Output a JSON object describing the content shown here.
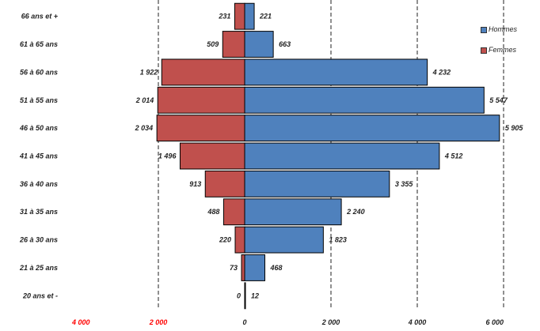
{
  "chart_data": {
    "type": "bar",
    "orientation": "horizontal",
    "layout": "population-pyramid",
    "categories": [
      "66 ans et +",
      "61 à 65 ans",
      "56 à 60 ans",
      "51 à 55 ans",
      "46 à 50 ans",
      "41 à 45 ans",
      "36 à 40 ans",
      "31 à 35 ans",
      "26 à 30 ans",
      "21 à 25 ans",
      "20 ans et -"
    ],
    "series": [
      {
        "name": "Hommes",
        "side": "right",
        "color": "#4f81bd",
        "values": [
          221,
          663,
          4232,
          5547,
          5905,
          4512,
          3355,
          2240,
          1823,
          468,
          12
        ],
        "labels": [
          "221",
          "663",
          "4 232",
          "5 547",
          "5 905",
          "4 512",
          "3 355",
          "2 240",
          "1 823",
          "468",
          "12"
        ]
      },
      {
        "name": "Femmes",
        "side": "left",
        "color": "#c0504d",
        "values": [
          231,
          509,
          1922,
          2014,
          2034,
          1496,
          913,
          488,
          220,
          73,
          0
        ],
        "labels": [
          "231",
          "509",
          "1 922",
          "2 014",
          "2 034",
          "1 496",
          "913",
          "488",
          "220",
          "73",
          "0"
        ]
      }
    ],
    "xlim": [
      -4000,
      6000
    ],
    "x_ticks": [
      -4000,
      -2000,
      0,
      2000,
      4000,
      6000
    ],
    "x_tick_labels": [
      "4 000",
      "2 000",
      "0",
      "2 000",
      "4 000",
      "6 000"
    ],
    "x_tick_colors": [
      "#ff0000",
      "#ff0000",
      "#222222",
      "#222222",
      "#222222",
      "#222222"
    ],
    "grid": "vertical dashed",
    "legend_position": "top-right"
  }
}
